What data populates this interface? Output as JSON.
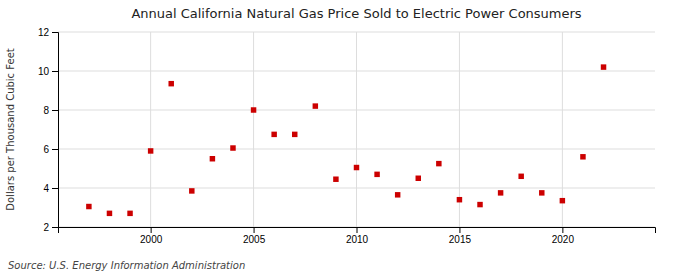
{
  "chart_data": {
    "type": "scatter",
    "title": "Annual California Natural Gas Price Sold to Electric Power Consumers",
    "ylabel": "Dollars per Thousand Cubic Feet",
    "annotations": [
      "Source: U.S. Energy Information Administration"
    ],
    "x": [
      1997,
      1998,
      1999,
      2000,
      2001,
      2002,
      2003,
      2004,
      2005,
      2006,
      2007,
      2008,
      2009,
      2010,
      2011,
      2012,
      2013,
      2014,
      2015,
      2016,
      2017,
      2018,
      2019,
      2020,
      2021,
      2022
    ],
    "values": [
      3.05,
      2.7,
      2.7,
      5.9,
      9.35,
      3.85,
      5.5,
      6.05,
      8.0,
      6.75,
      6.75,
      8.2,
      4.45,
      5.05,
      4.7,
      3.65,
      4.5,
      5.25,
      3.4,
      3.15,
      3.75,
      4.6,
      3.75,
      3.35,
      5.6,
      10.2
    ],
    "color": "#cc0000",
    "marker": "square",
    "xlim": [
      1995.5,
      2024.5
    ],
    "xticks": [
      2000,
      2005,
      2010,
      2015,
      2020
    ],
    "ylim": [
      2,
      12
    ],
    "yticks": [
      2,
      4,
      6,
      8,
      10,
      12
    ],
    "grid": true
  }
}
